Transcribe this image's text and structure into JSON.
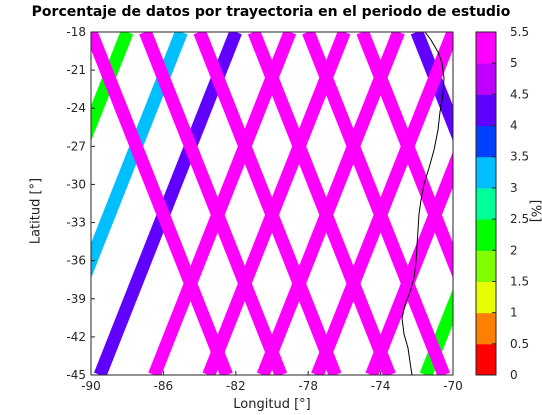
{
  "chart_data": {
    "type": "map-scatter",
    "title": "Porcentaje de datos por trayectoria en el periodo de estudio",
    "xlabel": "Longitud [°]",
    "ylabel": "Latitud [°]",
    "xlim": [
      -90,
      -70
    ],
    "ylim": [
      -45,
      -18
    ],
    "xticks": [
      "-90",
      "-86",
      "-82",
      "-78",
      "-74",
      "-70"
    ],
    "yticks": [
      "-18",
      "-21",
      "-24",
      "-27",
      "-30",
      "-33",
      "-36",
      "-39",
      "-42",
      "-45"
    ],
    "colorbar": {
      "label": "[%]",
      "range": [
        0,
        5.5
      ],
      "ticks": [
        "0",
        "0.5",
        "1",
        "1.5",
        "2",
        "2.5",
        "3",
        "3.5",
        "4",
        "4.5",
        "5",
        "5.5"
      ],
      "colors": [
        "#ff0000",
        "#ff8000",
        "#e6ff00",
        "#80ff00",
        "#00ff00",
        "#00ff99",
        "#00bfff",
        "#0040ff",
        "#6000ff",
        "#c000ff",
        "#ff00ff"
      ]
    },
    "tracks": [
      {
        "direction": "descending",
        "lon_at_top": -90.0,
        "value": 5.2
      },
      {
        "direction": "descending",
        "lon_at_top": -87.0,
        "value": 5.1
      },
      {
        "direction": "descending",
        "lon_at_top": -84.0,
        "value": 5.2
      },
      {
        "direction": "descending",
        "lon_at_top": -81.0,
        "value": 5.3
      },
      {
        "direction": "descending",
        "lon_at_top": -78.0,
        "value": 5.3
      },
      {
        "direction": "descending",
        "lon_at_top": -75.0,
        "value": 5.3
      },
      {
        "direction": "descending",
        "lon_at_top": -72.0,
        "value": 4.4
      },
      {
        "direction": "descending",
        "lon_at_top": -69.0,
        "value": 5.3
      },
      {
        "direction": "descending",
        "lon_at_top": -66.0,
        "value": 3.1
      },
      {
        "direction": "descending",
        "lon_at_top": -63.0,
        "value": 1.0
      },
      {
        "direction": "ascending",
        "lon_at_top": -64.0,
        "value": 2.0
      },
      {
        "direction": "ascending",
        "lon_at_top": -67.0,
        "value": 5.3
      },
      {
        "direction": "ascending",
        "lon_at_top": -70.0,
        "value": 5.3
      },
      {
        "direction": "ascending",
        "lon_at_top": -73.0,
        "value": 5.3
      },
      {
        "direction": "ascending",
        "lon_at_top": -76.0,
        "value": 5.3
      },
      {
        "direction": "ascending",
        "lon_at_top": -79.0,
        "value": 5.3
      },
      {
        "direction": "ascending",
        "lon_at_top": -82.0,
        "value": 4.3
      },
      {
        "direction": "ascending",
        "lon_at_top": -85.0,
        "value": 3.1
      },
      {
        "direction": "ascending",
        "lon_at_top": -88.0,
        "value": 2.1
      },
      {
        "direction": "ascending",
        "lon_at_top": -91.0,
        "value": 1.8
      }
    ],
    "grid": false
  }
}
